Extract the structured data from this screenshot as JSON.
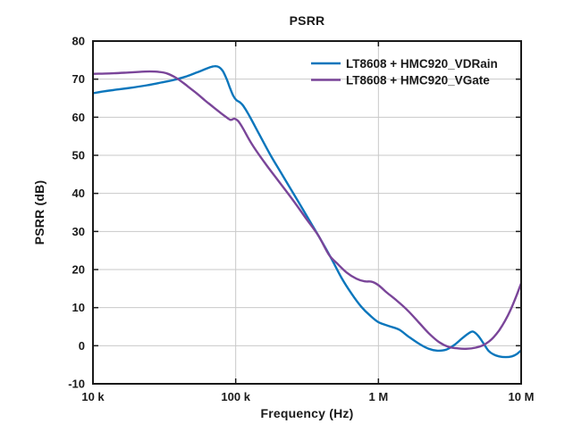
{
  "figure": {
    "background": "#ffffff",
    "text_color": "#1a1a1a"
  },
  "chart_data": {
    "type": "line",
    "title": "PSRR",
    "xlabel": "Frequency (Hz)",
    "ylabel": "PSRR (dB)",
    "x_scale": "log",
    "xlim": [
      10000,
      10000000
    ],
    "ylim": [
      -10,
      80
    ],
    "grid": true,
    "grid_color": "#c9c9c9",
    "axis_color": "#1a1a1a",
    "legend_position": "top-right-inside",
    "x_ticks": [
      {
        "value": 10000,
        "label": "10 k"
      },
      {
        "value": 100000,
        "label": "100 k"
      },
      {
        "value": 1000000,
        "label": "1 M"
      },
      {
        "value": 10000000,
        "label": "10 M"
      }
    ],
    "y_ticks": [
      {
        "value": 80,
        "label": "80"
      },
      {
        "value": 70,
        "label": "70"
      },
      {
        "value": 60,
        "label": "60"
      },
      {
        "value": 50,
        "label": "50"
      },
      {
        "value": 40,
        "label": "40"
      },
      {
        "value": 30,
        "label": "30"
      },
      {
        "value": 20,
        "label": "20"
      },
      {
        "value": 10,
        "label": "10"
      },
      {
        "value": 0,
        "label": "0"
      },
      {
        "value": -10,
        "label": "-10"
      }
    ],
    "series": [
      {
        "name": "LT8608 + HMC920_VDRain",
        "color": "#0b76bc",
        "points": [
          [
            10000,
            66.3
          ],
          [
            12000,
            66.8
          ],
          [
            15000,
            67.3
          ],
          [
            19000,
            67.8
          ],
          [
            24000,
            68.4
          ],
          [
            30000,
            69.1
          ],
          [
            37000,
            69.8
          ],
          [
            45000,
            70.7
          ],
          [
            53000,
            71.7
          ],
          [
            60000,
            72.5
          ],
          [
            66000,
            73.1
          ],
          [
            71000,
            73.4
          ],
          [
            76000,
            73.2
          ],
          [
            81000,
            72.2
          ],
          [
            86000,
            70.2
          ],
          [
            91000,
            67.8
          ],
          [
            96000,
            65.7
          ],
          [
            101000,
            64.5
          ],
          [
            107000,
            63.9
          ],
          [
            113000,
            63.0
          ],
          [
            125000,
            60.3
          ],
          [
            145000,
            55.8
          ],
          [
            175000,
            50.1
          ],
          [
            215000,
            44.5
          ],
          [
            265000,
            38.8
          ],
          [
            325000,
            33.2
          ],
          [
            395000,
            27.8
          ],
          [
            465000,
            23.1
          ],
          [
            550000,
            17.9
          ],
          [
            650000,
            13.6
          ],
          [
            760000,
            10.2
          ],
          [
            870000,
            8.0
          ],
          [
            1000000,
            6.2
          ],
          [
            1200000,
            5.1
          ],
          [
            1400000,
            4.2
          ],
          [
            1650000,
            2.2
          ],
          [
            1950000,
            0.4
          ],
          [
            2250000,
            -0.8
          ],
          [
            2600000,
            -1.3
          ],
          [
            3000000,
            -1.0
          ],
          [
            3400000,
            0.2
          ],
          [
            3850000,
            1.9
          ],
          [
            4300000,
            3.3
          ],
          [
            4600000,
            3.7
          ],
          [
            5000000,
            2.6
          ],
          [
            5450000,
            0.6
          ],
          [
            5900000,
            -1.3
          ],
          [
            6400000,
            -2.3
          ],
          [
            7000000,
            -2.8
          ],
          [
            7800000,
            -3.0
          ],
          [
            8600000,
            -2.8
          ],
          [
            9300000,
            -2.2
          ],
          [
            10000000,
            -1.2
          ]
        ]
      },
      {
        "name": "LT8608 + HMC920_VGate",
        "color": "#7a4599",
        "points": [
          [
            10000,
            71.4
          ],
          [
            13000,
            71.5
          ],
          [
            17000,
            71.7
          ],
          [
            21000,
            71.9
          ],
          [
            25000,
            72.0
          ],
          [
            29000,
            71.9
          ],
          [
            33000,
            71.5
          ],
          [
            38000,
            70.4
          ],
          [
            43000,
            69.0
          ],
          [
            48000,
            67.6
          ],
          [
            54000,
            66.1
          ],
          [
            61000,
            64.4
          ],
          [
            69000,
            62.8
          ],
          [
            78000,
            61.2
          ],
          [
            86000,
            60.0
          ],
          [
            92000,
            59.3
          ],
          [
            98000,
            59.6
          ],
          [
            104000,
            59.0
          ],
          [
            112000,
            57.2
          ],
          [
            130000,
            52.9
          ],
          [
            160000,
            48.0
          ],
          [
            200000,
            43.2
          ],
          [
            250000,
            38.4
          ],
          [
            310000,
            33.5
          ],
          [
            380000,
            28.9
          ],
          [
            450000,
            23.9
          ],
          [
            520000,
            21.4
          ],
          [
            600000,
            19.2
          ],
          [
            700000,
            17.6
          ],
          [
            800000,
            16.9
          ],
          [
            900000,
            16.8
          ],
          [
            1000000,
            15.9
          ],
          [
            1150000,
            13.9
          ],
          [
            1350000,
            11.8
          ],
          [
            1600000,
            9.3
          ],
          [
            1900000,
            6.3
          ],
          [
            2250000,
            3.3
          ],
          [
            2650000,
            1.0
          ],
          [
            3100000,
            -0.3
          ],
          [
            3600000,
            -0.7
          ],
          [
            4200000,
            -0.8
          ],
          [
            4800000,
            -0.5
          ],
          [
            5400000,
            0.1
          ],
          [
            5900000,
            1.0
          ],
          [
            6400000,
            2.2
          ],
          [
            7000000,
            4.0
          ],
          [
            7700000,
            6.5
          ],
          [
            8400000,
            9.3
          ],
          [
            9200000,
            12.8
          ],
          [
            10000000,
            16.4
          ]
        ]
      }
    ]
  }
}
